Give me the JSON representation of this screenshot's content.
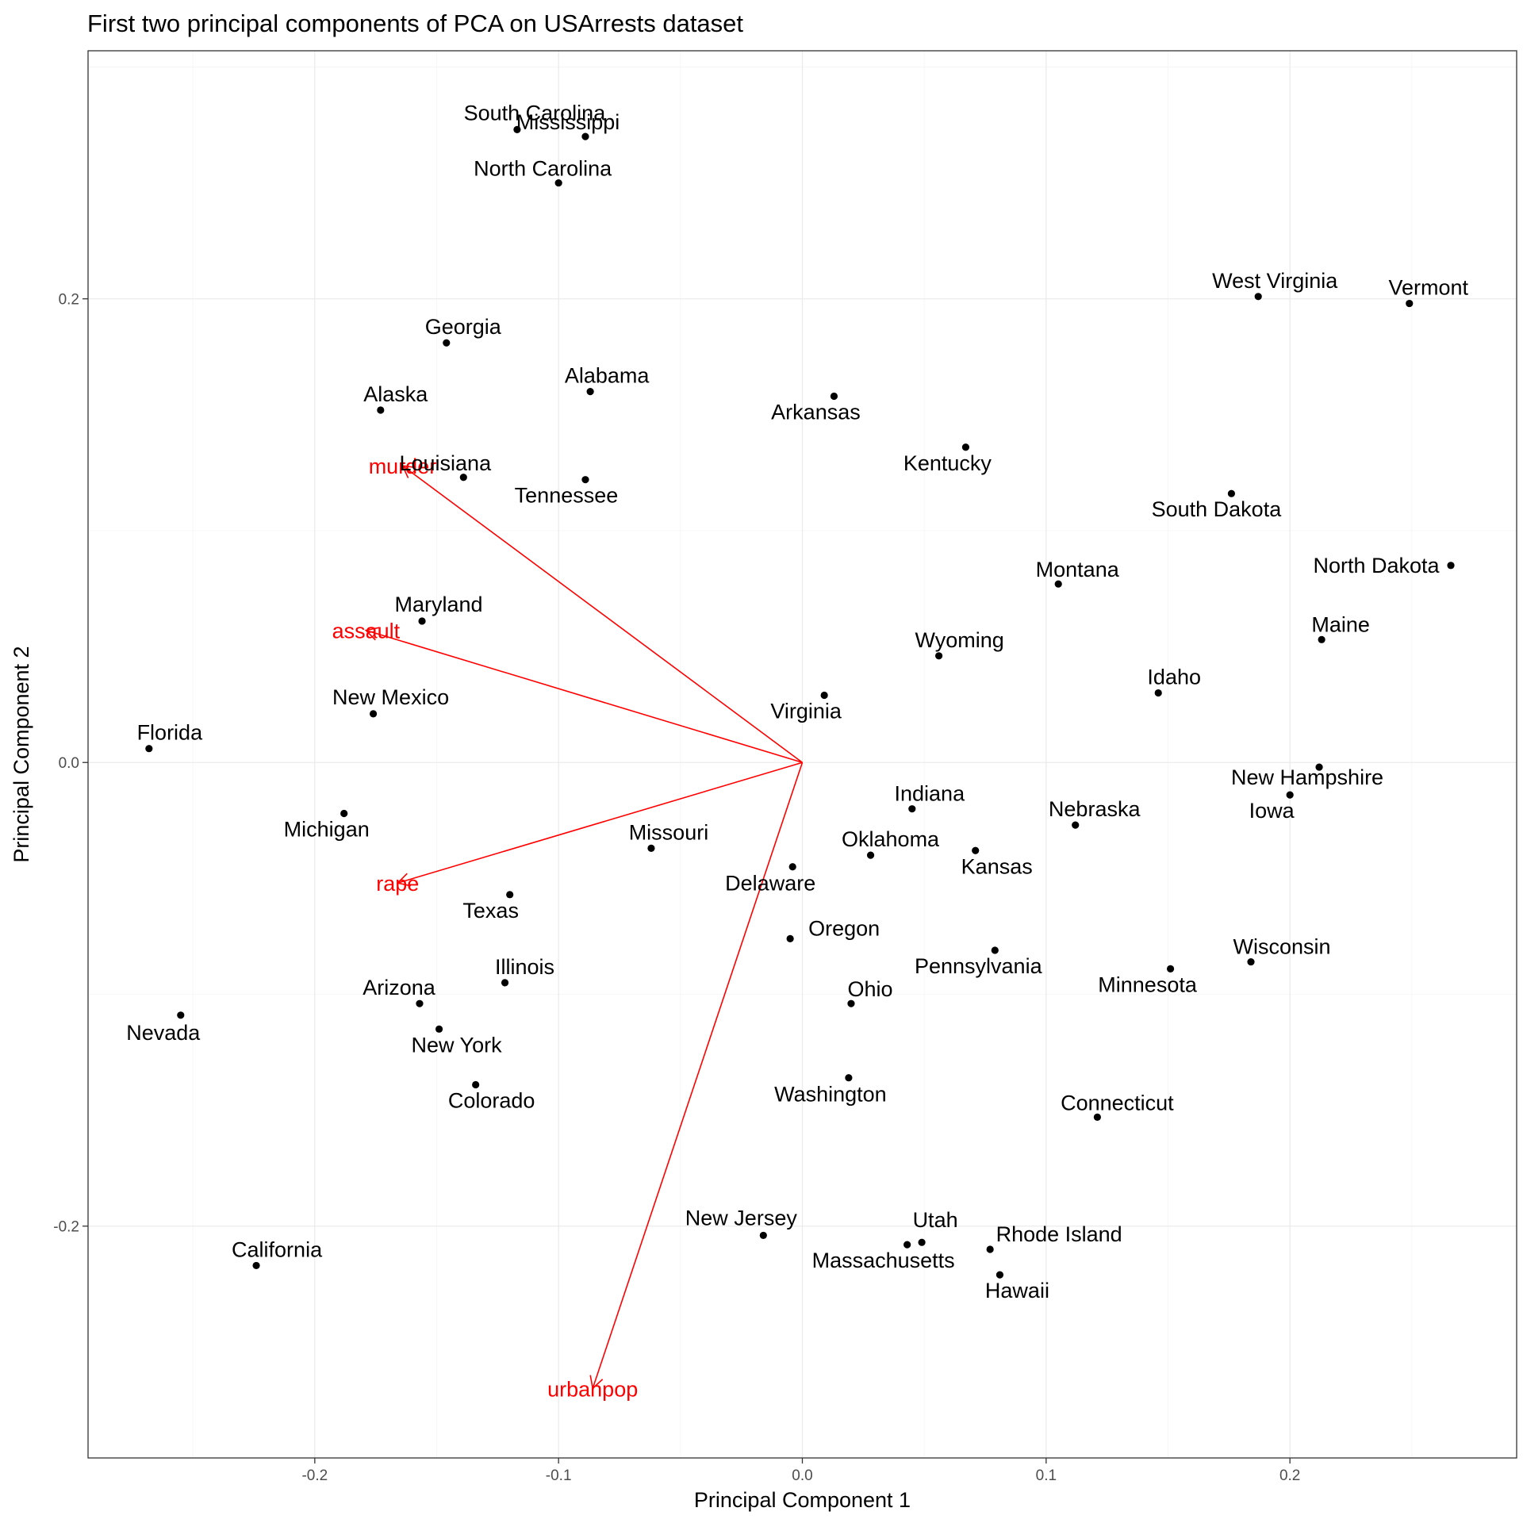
{
  "chart_data": {
    "type": "scatter",
    "title": "First two principal components of PCA on USArrests dataset",
    "xlabel": "Principal Component 1",
    "ylabel": "Principal Component 2",
    "xlim": [
      -0.293,
      0.293
    ],
    "ylim": [
      -0.3,
      0.307
    ],
    "x_ticks": [
      -0.2,
      -0.1,
      0.0,
      0.1,
      0.2
    ],
    "y_ticks": [
      -0.2,
      0.0,
      0.2
    ],
    "x_tick_labels": [
      "-0.2",
      "-0.1",
      "0.0",
      "0.1",
      "0.2"
    ],
    "y_tick_labels": [
      "-0.2",
      "0.0",
      "0.2"
    ],
    "grid": true,
    "point_color": "#000000",
    "loading_color": "#ff0000",
    "points": [
      {
        "name": "Mississippi",
        "x": -0.089,
        "y": 0.27
      },
      {
        "name": "North Carolina",
        "x": -0.1,
        "y": 0.25
      },
      {
        "name": "South Carolina",
        "x": -0.117,
        "y": 0.273
      },
      {
        "name": "West Virginia",
        "x": 0.187,
        "y": 0.201
      },
      {
        "name": "Vermont",
        "x": 0.249,
        "y": 0.198
      },
      {
        "name": "Georgia",
        "x": -0.146,
        "y": 0.181
      },
      {
        "name": "Alabama",
        "x": -0.087,
        "y": 0.16
      },
      {
        "name": "Alaska",
        "x": -0.173,
        "y": 0.152
      },
      {
        "name": "Arkansas",
        "x": 0.013,
        "y": 0.158
      },
      {
        "name": "Louisiana",
        "x": -0.139,
        "y": 0.123
      },
      {
        "name": "Tennessee",
        "x": -0.089,
        "y": 0.122
      },
      {
        "name": "Kentucky",
        "x": 0.067,
        "y": 0.136
      },
      {
        "name": "South Dakota",
        "x": 0.176,
        "y": 0.116
      },
      {
        "name": "North Dakota",
        "x": 0.266,
        "y": 0.085
      },
      {
        "name": "Montana",
        "x": 0.105,
        "y": 0.077
      },
      {
        "name": "Maryland",
        "x": -0.156,
        "y": 0.061
      },
      {
        "name": "Maine",
        "x": 0.213,
        "y": 0.053
      },
      {
        "name": "Wyoming",
        "x": 0.056,
        "y": 0.046
      },
      {
        "name": "Idaho",
        "x": 0.146,
        "y": 0.03
      },
      {
        "name": "Virginia",
        "x": 0.009,
        "y": 0.029
      },
      {
        "name": "New Mexico",
        "x": -0.176,
        "y": 0.021
      },
      {
        "name": "Florida",
        "x": -0.268,
        "y": 0.006
      },
      {
        "name": "New Hampshire",
        "x": 0.212,
        "y": -0.002
      },
      {
        "name": "Iowa",
        "x": 0.2,
        "y": -0.014
      },
      {
        "name": "Indiana",
        "x": 0.045,
        "y": -0.02
      },
      {
        "name": "Michigan",
        "x": -0.188,
        "y": -0.022
      },
      {
        "name": "Nebraska",
        "x": 0.112,
        "y": -0.027
      },
      {
        "name": "Oklahoma",
        "x": 0.028,
        "y": -0.04
      },
      {
        "name": "Kansas",
        "x": 0.071,
        "y": -0.038
      },
      {
        "name": "Missouri",
        "x": -0.062,
        "y": -0.037
      },
      {
        "name": "Delaware",
        "x": -0.004,
        "y": -0.045
      },
      {
        "name": "Texas",
        "x": -0.12,
        "y": -0.057
      },
      {
        "name": "Oregon",
        "x": -0.005,
        "y": -0.076
      },
      {
        "name": "Pennsylvania",
        "x": 0.079,
        "y": -0.081
      },
      {
        "name": "Wisconsin",
        "x": 0.184,
        "y": -0.086
      },
      {
        "name": "Minnesota",
        "x": 0.151,
        "y": -0.089
      },
      {
        "name": "Illinois",
        "x": -0.122,
        "y": -0.095
      },
      {
        "name": "Ohio",
        "x": 0.02,
        "y": -0.104
      },
      {
        "name": "Arizona",
        "x": -0.157,
        "y": -0.104
      },
      {
        "name": "Nevada",
        "x": -0.255,
        "y": -0.109
      },
      {
        "name": "New York",
        "x": -0.149,
        "y": -0.115
      },
      {
        "name": "Colorado",
        "x": -0.134,
        "y": -0.139
      },
      {
        "name": "Washington",
        "x": 0.019,
        "y": -0.136
      },
      {
        "name": "Connecticut",
        "x": 0.121,
        "y": -0.153
      },
      {
        "name": "New Jersey",
        "x": -0.016,
        "y": -0.204
      },
      {
        "name": "Utah",
        "x": 0.049,
        "y": -0.207
      },
      {
        "name": "Massachusetts",
        "x": 0.043,
        "y": -0.208
      },
      {
        "name": "Rhode Island",
        "x": 0.077,
        "y": -0.21
      },
      {
        "name": "Hawaii",
        "x": 0.081,
        "y": -0.221
      },
      {
        "name": "California",
        "x": -0.224,
        "y": -0.217
      }
    ],
    "loadings": [
      {
        "name": "murder",
        "x": -0.164,
        "y": 0.128
      },
      {
        "name": "assault",
        "x": -0.179,
        "y": 0.057
      },
      {
        "name": "rape",
        "x": -0.166,
        "y": -0.052
      },
      {
        "name": "urbanpop",
        "x": -0.086,
        "y": -0.27
      }
    ]
  }
}
